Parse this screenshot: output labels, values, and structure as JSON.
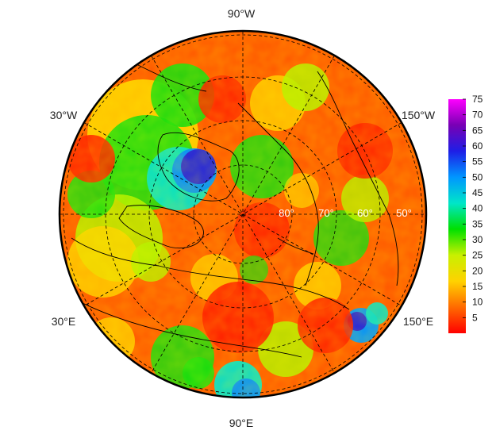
{
  "map": {
    "projection": "north-polar-stereographic",
    "longitude_labels": [
      {
        "id": "90w",
        "text": "90°W"
      },
      {
        "id": "30w",
        "text": "30°W"
      },
      {
        "id": "150w",
        "text": "150°W"
      },
      {
        "id": "30e",
        "text": "30°E"
      },
      {
        "id": "150e",
        "text": "150°E"
      },
      {
        "id": "90e",
        "text": "90°E"
      }
    ],
    "latitude_labels": [
      "80°",
      "70°",
      "60°",
      "50°"
    ],
    "graticule": {
      "style": "dashed",
      "color": "#000000"
    }
  },
  "colorbar": {
    "min": 0,
    "max": 75,
    "ticks": [
      "5",
      "10",
      "15",
      "20",
      "25",
      "30",
      "35",
      "40",
      "45",
      "50",
      "55",
      "60",
      "65",
      "70",
      "75"
    ],
    "colors": [
      "#ff0000",
      "#ff6a00",
      "#ffd200",
      "#c8f000",
      "#00e000",
      "#00e6c8",
      "#0096ff",
      "#1e1ee6",
      "#7800b4",
      "#ff00ff"
    ]
  }
}
